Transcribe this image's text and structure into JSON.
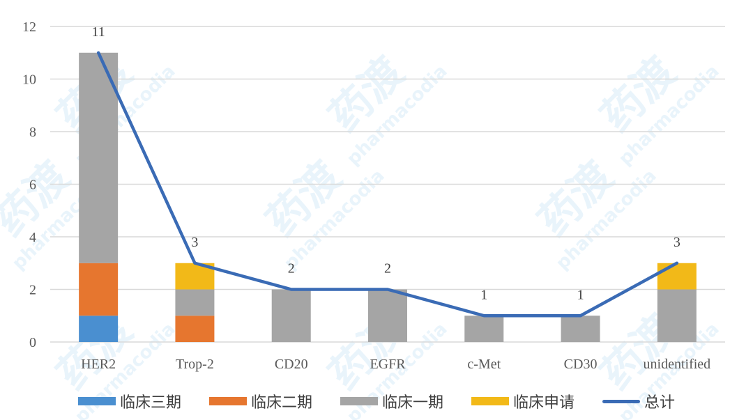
{
  "chart_data": {
    "type": "bar",
    "stacked": true,
    "title": "",
    "xlabel": "",
    "ylabel": "",
    "ylim": [
      0,
      12
    ],
    "yticks": [
      0,
      2,
      4,
      6,
      8,
      10,
      12
    ],
    "grid": true,
    "legend_position": "bottom",
    "categories": [
      "HER2",
      "Trop-2",
      "CD20",
      "EGFR",
      "c-Met",
      "CD30",
      "unidentified"
    ],
    "series": [
      {
        "name": "临床三期",
        "type": "bar",
        "color": "#4a8fd0",
        "values": [
          1,
          0,
          0,
          0,
          0,
          0,
          0
        ]
      },
      {
        "name": "临床二期",
        "type": "bar",
        "color": "#e6762f",
        "values": [
          2,
          1,
          0,
          0,
          0,
          0,
          0
        ]
      },
      {
        "name": "临床一期",
        "type": "bar",
        "color": "#a5a5a5",
        "values": [
          8,
          1,
          2,
          2,
          1,
          1,
          2
        ]
      },
      {
        "name": "临床申请",
        "type": "bar",
        "color": "#f2b918",
        "values": [
          0,
          1,
          0,
          0,
          0,
          0,
          1
        ]
      },
      {
        "name": "总计",
        "type": "line",
        "color": "#3a6bb5",
        "values": [
          11,
          3,
          2,
          2,
          1,
          1,
          3
        ]
      }
    ],
    "data_labels": [
      "11",
      "3",
      "2",
      "2",
      "1",
      "1",
      "3"
    ]
  },
  "watermark": {
    "text_cn": "药渡",
    "text_en": "pharmacodia"
  }
}
